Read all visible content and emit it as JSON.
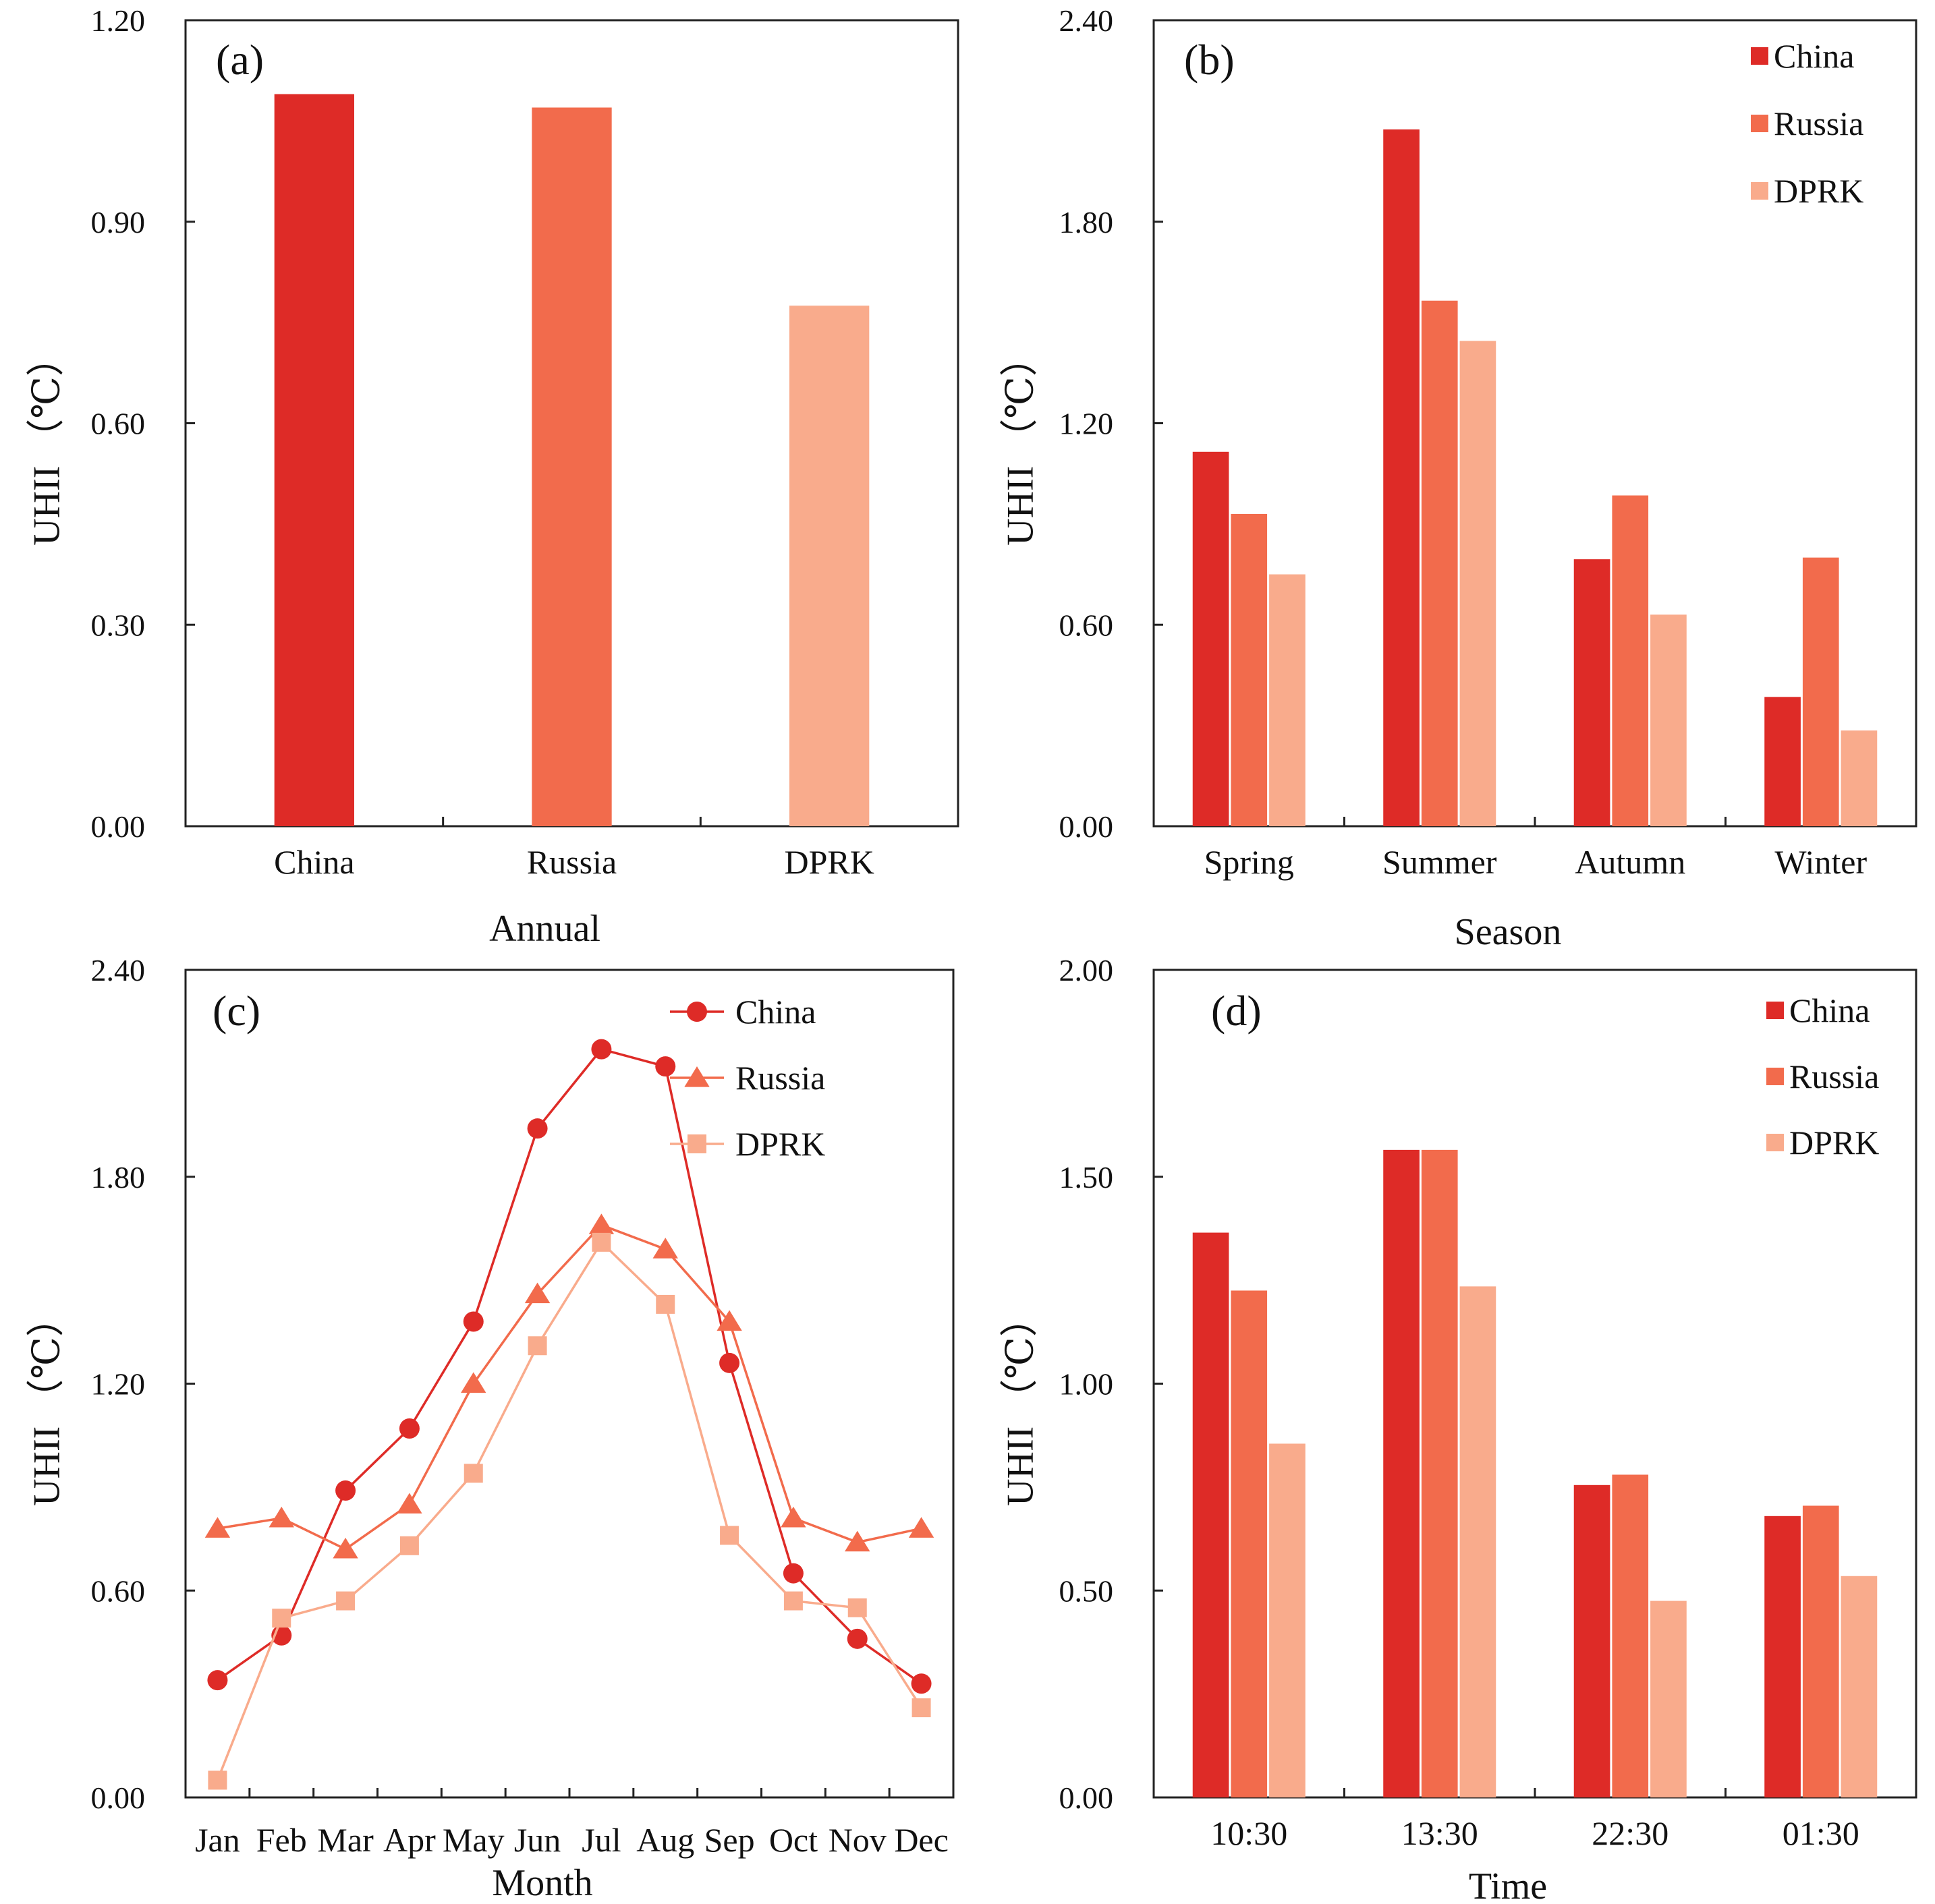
{
  "colors": {
    "China": "#de2b27",
    "Russia": "#f26b4c",
    "DPRK": "#f9ab8c"
  },
  "chart_data": [
    {
      "id": "a",
      "type": "bar",
      "panel_label": "(a)",
      "xlabel": "Annual",
      "ylabel": "UHII （℃）",
      "ylim": [
        0,
        1.2
      ],
      "yticks": [
        "0.00",
        "0.30",
        "0.60",
        "0.90",
        "1.20"
      ],
      "categories": [
        "China",
        "Russia",
        "DPRK"
      ],
      "series": [
        {
          "name": "UHII",
          "values": [
            1.09,
            1.07,
            0.775
          ]
        }
      ],
      "legend": null
    },
    {
      "id": "b",
      "type": "bar",
      "panel_label": "(b)",
      "xlabel": "Season",
      "ylabel": "UHII （℃）",
      "ylim": [
        0,
        2.4
      ],
      "yticks": [
        "0.00",
        "0.60",
        "1.20",
        "1.80",
        "2.40"
      ],
      "categories": [
        "Spring",
        "Summer",
        "Autumn",
        "Winter"
      ],
      "series": [
        {
          "name": "China",
          "values": [
            1.115,
            2.075,
            0.795,
            0.385
          ]
        },
        {
          "name": "Russia",
          "values": [
            0.93,
            1.565,
            0.985,
            0.8
          ]
        },
        {
          "name": "DPRK",
          "values": [
            0.75,
            1.445,
            0.63,
            0.285
          ]
        }
      ],
      "legend": [
        "China",
        "Russia",
        "DPRK"
      ]
    },
    {
      "id": "c",
      "type": "line",
      "panel_label": "(c)",
      "xlabel": "Month",
      "ylabel": "UHII （℃）",
      "ylim": [
        0,
        2.4
      ],
      "yticks": [
        "0.00",
        "0.60",
        "1.20",
        "1.80",
        "2.40"
      ],
      "categories": [
        "Jan",
        "Feb",
        "Mar",
        "Apr",
        "May",
        "Jun",
        "Jul",
        "Aug",
        "Sep",
        "Oct",
        "Nov",
        "Dec"
      ],
      "series": [
        {
          "name": "China",
          "marker": "circle",
          "values": [
            0.34,
            0.47,
            0.89,
            1.07,
            1.38,
            1.94,
            2.17,
            2.12,
            1.26,
            0.65,
            0.46,
            0.33
          ]
        },
        {
          "name": "Russia",
          "marker": "triangle",
          "values": [
            0.78,
            0.81,
            0.72,
            0.85,
            1.2,
            1.46,
            1.66,
            1.59,
            1.38,
            0.81,
            0.74,
            0.78
          ]
        },
        {
          "name": "DPRK",
          "marker": "square",
          "values": [
            0.05,
            0.52,
            0.57,
            0.73,
            0.94,
            1.31,
            1.61,
            1.43,
            0.76,
            0.57,
            0.55,
            0.26
          ]
        }
      ],
      "legend": [
        "China",
        "Russia",
        "DPRK"
      ]
    },
    {
      "id": "d",
      "type": "bar",
      "panel_label": "(d)",
      "xlabel": "Time",
      "ylabel": "UHII （℃）",
      "ylim": [
        0,
        2.0
      ],
      "yticks": [
        "0.00",
        "0.50",
        "1.00",
        "1.50",
        "2.00"
      ],
      "categories": [
        "10:30",
        "13:30",
        "22:30",
        "01:30"
      ],
      "series": [
        {
          "name": "China",
          "values": [
            1.365,
            1.565,
            0.755,
            0.68
          ]
        },
        {
          "name": "Russia",
          "values": [
            1.225,
            1.565,
            0.78,
            0.705
          ]
        },
        {
          "name": "DPRK",
          "values": [
            0.855,
            1.235,
            0.475,
            0.535
          ]
        }
      ],
      "legend": [
        "China",
        "Russia",
        "DPRK"
      ]
    }
  ]
}
